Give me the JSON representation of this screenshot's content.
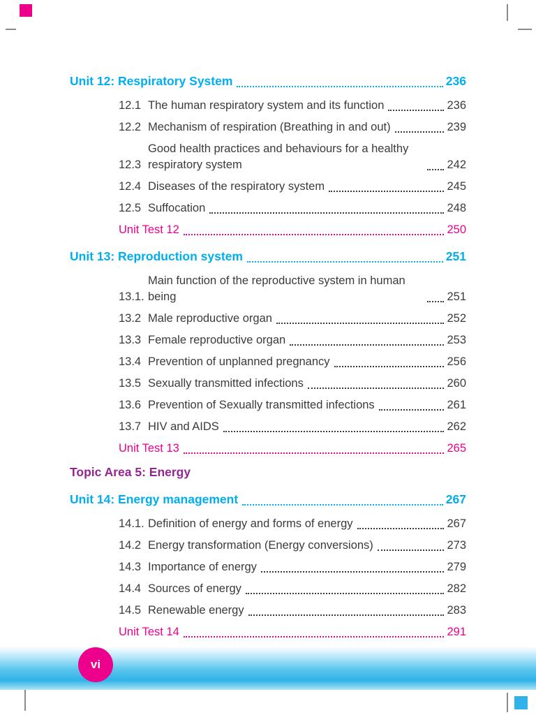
{
  "colors": {
    "unit_heading": "#00AEEF",
    "unit_test": "#EC008C",
    "topic_area": "#93268F",
    "body_text": "#3B3B3D",
    "footer_band": "#2FB3E8",
    "page_badge": "#EC008C"
  },
  "footer": {
    "page_label": "vi"
  },
  "toc": {
    "topic_area": {
      "label": "Topic Area 5: Energy"
    },
    "sections": [
      {
        "heading": "Unit 12: Respiratory System",
        "page": "236",
        "items": [
          {
            "number": "12.1",
            "title": "The human respiratory system and its function",
            "page": "236"
          },
          {
            "number": "12.2",
            "title": "Mechanism of respiration (Breathing in and out)",
            "page": "239"
          },
          {
            "number": "12.3",
            "title": "Good health practices and behaviours for a healthy respiratory system",
            "page": "242"
          },
          {
            "number": "12.4",
            "title": "Diseases of the respiratory system",
            "page": "245"
          },
          {
            "number": "12.5",
            "title": "Suffocation",
            "page": "248"
          }
        ],
        "unit_test": {
          "label": "Unit Test 12",
          "page": "250"
        }
      },
      {
        "heading": "Unit 13: Reproduction system",
        "page": "251",
        "items": [
          {
            "number": "13.1.",
            "title": "Main function of the reproductive system in human being",
            "page": "251"
          },
          {
            "number": "13.2",
            "title": "Male reproductive organ",
            "page": "252"
          },
          {
            "number": "13.3",
            "title": "Female reproductive organ",
            "page": "253"
          },
          {
            "number": "13.4",
            "title": "Prevention of unplanned pregnancy",
            "page": "256"
          },
          {
            "number": "13.5",
            "title": "Sexually transmitted infections",
            "page": "260"
          },
          {
            "number": "13.6",
            "title": "Prevention of Sexually transmitted infections",
            "page": "261"
          },
          {
            "number": "13.7",
            "title": "HIV and AIDS",
            "page": "262"
          }
        ],
        "unit_test": {
          "label": "Unit Test 13",
          "page": "265"
        }
      },
      {
        "heading": "Unit 14: Energy management",
        "page": "267",
        "items": [
          {
            "number": "14.1.",
            "title": "Definition of energy and forms of energy",
            "page": "267"
          },
          {
            "number": "14.2",
            "title": "Energy transformation (Energy conversions)",
            "page": "273"
          },
          {
            "number": "14.3",
            "title": "Importance of energy",
            "page": "279"
          },
          {
            "number": "14.4",
            "title": "Sources of energy",
            "page": "282"
          },
          {
            "number": "14.5",
            "title": "Renewable energy",
            "page": "283"
          }
        ],
        "unit_test": {
          "label": "Unit Test 14",
          "page": "291"
        }
      }
    ]
  }
}
